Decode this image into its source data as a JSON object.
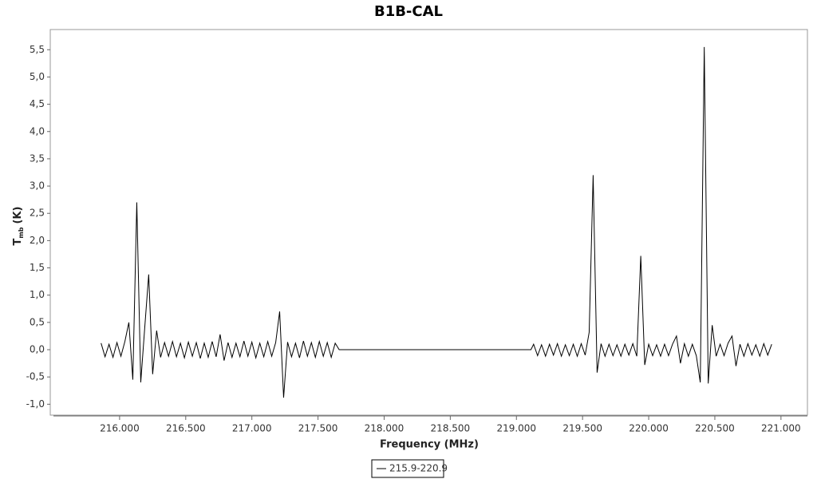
{
  "chart_data": {
    "type": "line",
    "title": "B1B-CAL",
    "x_label": "Frequency (MHz)",
    "y_label": {
      "main": "T",
      "sub": "mb",
      "unit": "(K)"
    },
    "xlim": [
      215500,
      221200
    ],
    "ylim": [
      -1.2,
      5.87
    ],
    "xticks": [
      {
        "value": 216000,
        "label": "216.000"
      },
      {
        "value": 216500,
        "label": "216.500"
      },
      {
        "value": 217000,
        "label": "217.000"
      },
      {
        "value": 217500,
        "label": "217.500"
      },
      {
        "value": 218000,
        "label": "218.000"
      },
      {
        "value": 218500,
        "label": "218.500"
      },
      {
        "value": 219000,
        "label": "219.000"
      },
      {
        "value": 219500,
        "label": "219.500"
      },
      {
        "value": 220000,
        "label": "220.000"
      },
      {
        "value": 220500,
        "label": "220.500"
      },
      {
        "value": 221000,
        "label": "221.000"
      }
    ],
    "yticks": [
      {
        "value": -1,
        "label": "-1,0"
      },
      {
        "value": -0.5,
        "label": "-0,5"
      },
      {
        "value": 0,
        "label": "0,0"
      },
      {
        "value": 0.5,
        "label": "0,5"
      },
      {
        "value": 1,
        "label": "1,0"
      },
      {
        "value": 1.5,
        "label": "1,5"
      },
      {
        "value": 2,
        "label": "2,0"
      },
      {
        "value": 2.5,
        "label": "2,5"
      },
      {
        "value": 3,
        "label": "3,0"
      },
      {
        "value": 3.5,
        "label": "3,5"
      },
      {
        "value": 4,
        "label": "4,0"
      },
      {
        "value": 4.5,
        "label": "4,5"
      },
      {
        "value": 5,
        "label": "5,0"
      },
      {
        "value": 5.5,
        "label": "5,5"
      }
    ],
    "grid": false,
    "legend": "bottom",
    "x": [
      215860,
      215890,
      215920,
      215950,
      215980,
      216010,
      216040,
      216070,
      216100,
      216130,
      216160,
      216190,
      216220,
      216250,
      216280,
      216310,
      216340,
      216370,
      216400,
      216430,
      216460,
      216490,
      216520,
      216550,
      216580,
      216610,
      216640,
      216670,
      216700,
      216730,
      216760,
      216790,
      216820,
      216850,
      216880,
      216910,
      216940,
      216970,
      217000,
      217030,
      217060,
      217090,
      217120,
      217150,
      217180,
      217210,
      217240,
      217270,
      217300,
      217330,
      217360,
      217390,
      217420,
      217450,
      217480,
      217510,
      217540,
      217570,
      217600,
      217630,
      217660,
      219110,
      219130,
      219160,
      219190,
      219220,
      219250,
      219280,
      219310,
      219340,
      219370,
      219400,
      219430,
      219460,
      219490,
      219520,
      219550,
      219580,
      219610,
      219640,
      219670,
      219700,
      219730,
      219760,
      219790,
      219820,
      219850,
      219880,
      219910,
      219940,
      219970,
      220000,
      220030,
      220060,
      220090,
      220120,
      220150,
      220180,
      220210,
      220240,
      220270,
      220300,
      220330,
      220360,
      220390,
      220420,
      220450,
      220480,
      220510,
      220540,
      220570,
      220600,
      220630,
      220660,
      220690,
      220720,
      220750,
      220780,
      220810,
      220840,
      220870,
      220900,
      220930
    ],
    "series": [
      {
        "name": "215.9-220.9",
        "color": "#000000",
        "values": [
          0.12,
          -0.13,
          0.1,
          -0.14,
          0.13,
          -0.12,
          0.15,
          0.5,
          -0.55,
          2.7,
          -0.6,
          0.4,
          1.38,
          -0.45,
          0.35,
          -0.14,
          0.13,
          -0.12,
          0.15,
          -0.13,
          0.12,
          -0.15,
          0.14,
          -0.12,
          0.13,
          -0.16,
          0.12,
          -0.14,
          0.15,
          -0.13,
          0.28,
          -0.2,
          0.13,
          -0.14,
          0.12,
          -0.13,
          0.16,
          -0.12,
          0.14,
          -0.15,
          0.12,
          -0.13,
          0.15,
          -0.12,
          0.13,
          0.7,
          -0.88,
          0.14,
          -0.13,
          0.12,
          -0.15,
          0.16,
          -0.12,
          0.13,
          -0.14,
          0.15,
          -0.12,
          0.13,
          -0.14,
          0.12,
          0,
          0,
          0.1,
          -0.11,
          0.09,
          -0.12,
          0.1,
          -0.1,
          0.11,
          -0.12,
          0.09,
          -0.11,
          0.1,
          -0.12,
          0.11,
          -0.1,
          0.32,
          3.2,
          -0.42,
          0.11,
          -0.12,
          0.1,
          -0.11,
          0.09,
          -0.12,
          0.1,
          -0.1,
          0.11,
          -0.12,
          1.72,
          -0.28,
          0.1,
          -0.11,
          0.09,
          -0.12,
          0.1,
          -0.11,
          0.1,
          0.25,
          -0.25,
          0.11,
          -0.12,
          0.1,
          -0.11,
          -0.6,
          5.55,
          -0.62,
          0.45,
          -0.12,
          0.1,
          -0.11,
          0.12,
          0.25,
          -0.3,
          0.1,
          -0.12,
          0.11,
          -0.1,
          0.09,
          -0.12,
          0.11,
          -0.1,
          0.1
        ]
      }
    ]
  }
}
